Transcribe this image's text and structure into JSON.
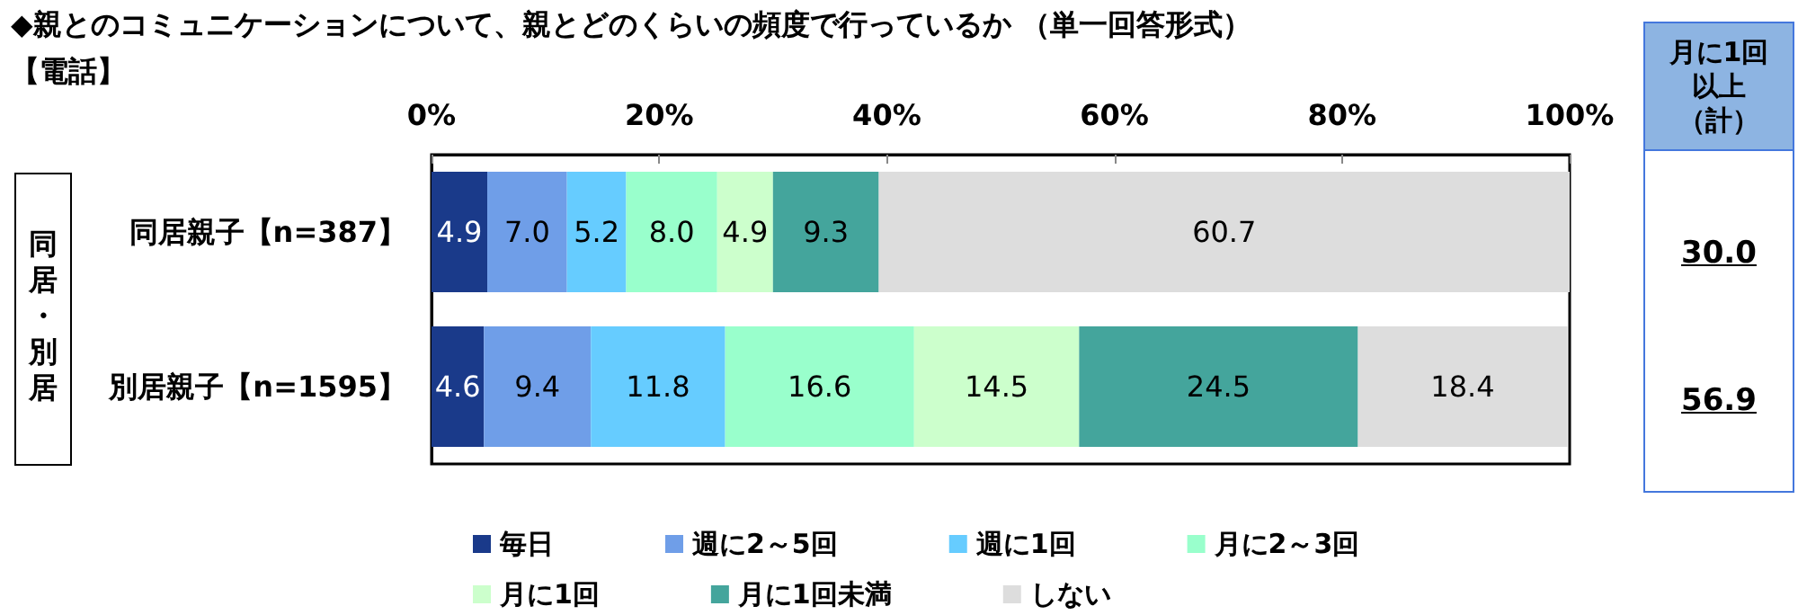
{
  "chart_data": {
    "type": "bar",
    "orientation": "horizontal",
    "stacked": true,
    "title": "◆親とのコミュニケーションについて、親とどのくらいの頻度で行っているか （単一回答形式）",
    "subtitle": "【電話】",
    "ylabel": "同居・別居",
    "categories": [
      "同居親子【n=387】",
      "別居親子【n=1595】"
    ],
    "series": [
      {
        "name": "毎日",
        "color": "#1a3a8a",
        "values": [
          4.9,
          4.6
        ],
        "value_labels": [
          "4.9",
          "4.6"
        ]
      },
      {
        "name": "週に2～5回",
        "color": "#6f9ee8",
        "values": [
          7.0,
          9.4
        ],
        "value_labels": [
          "7.0",
          "9.4"
        ]
      },
      {
        "name": "週に1回",
        "color": "#66ccff",
        "values": [
          5.2,
          11.8
        ],
        "value_labels": [
          "5.2",
          "11.8"
        ]
      },
      {
        "name": "月に2～3回",
        "color": "#99ffcc",
        "values": [
          8.0,
          16.6
        ],
        "value_labels": [
          "8.0",
          "16.6"
        ]
      },
      {
        "name": "月に1回",
        "color": "#ccffcc",
        "values": [
          4.9,
          14.5
        ],
        "value_labels": [
          "4.9",
          "14.5"
        ]
      },
      {
        "name": "月に1回未満",
        "color": "#44a59c",
        "values": [
          9.3,
          24.5
        ],
        "value_labels": [
          "9.3",
          "24.5"
        ]
      },
      {
        "name": "しない",
        "color": "#dddddd",
        "values": [
          60.7,
          18.4
        ],
        "value_labels": [
          "60.7",
          "18.4"
        ]
      }
    ],
    "xlim": [
      0,
      100
    ],
    "xticks": [
      {
        "value": 0,
        "label": "0%"
      },
      {
        "value": 20,
        "label": "20%"
      },
      {
        "value": 40,
        "label": "40%"
      },
      {
        "value": 60,
        "label": "60%"
      },
      {
        "value": 80,
        "label": "80%"
      },
      {
        "value": 100,
        "label": "100%"
      }
    ],
    "grid": false,
    "legend": "bottom",
    "annotations": [
      "月に1回以上（計）",
      "30.0",
      "56.9"
    ]
  }
}
